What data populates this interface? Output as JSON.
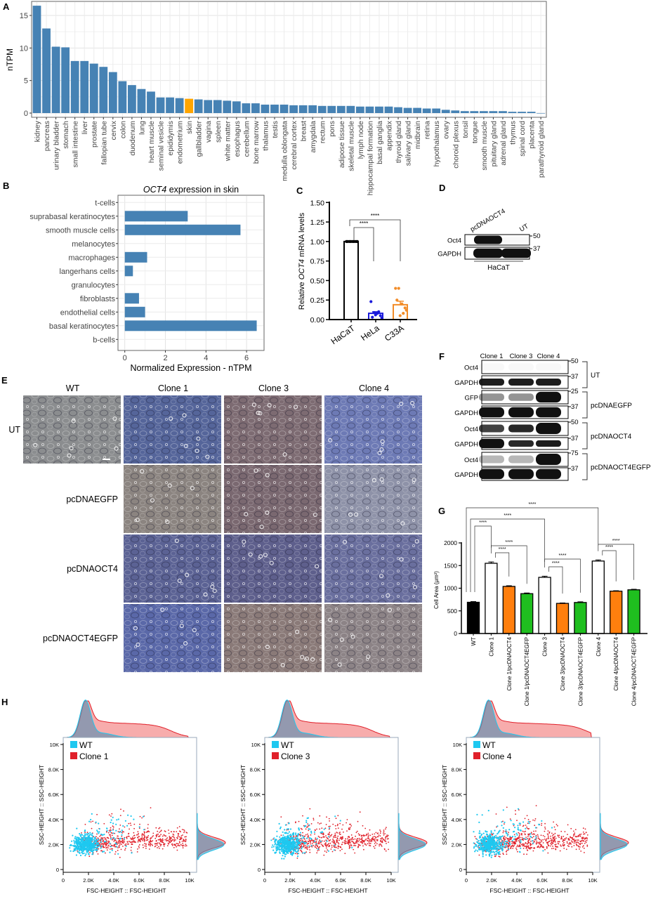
{
  "panel_labels": {
    "A": "A",
    "B": "B",
    "C": "C",
    "D": "D",
    "E": "E",
    "F": "F",
    "G": "G",
    "H": "H"
  },
  "chart_data": [
    {
      "panel": "A",
      "type": "bar",
      "ylabel": "nTPM",
      "yticks": [
        0,
        5,
        10,
        15
      ],
      "ylim": [
        -0.7,
        17
      ],
      "grid": true,
      "highlight": "skin",
      "colors": {
        "bar": "#4682b4",
        "highlight": "#ffa500"
      },
      "categories": [
        "kidney",
        "pancreas",
        "urinary bladder",
        "stomach",
        "small intestine",
        "liver",
        "prostate",
        "fallopian tube",
        "cervix",
        "colon",
        "duodenum",
        "lung",
        "heart muscle",
        "seminal vesicle",
        "epididymis",
        "endometrium",
        "skin",
        "gallbladder",
        "vagina",
        "spleen",
        "white matter",
        "esophagus",
        "cerebellum",
        "bone marrow",
        "thalamus",
        "testis",
        "medulla oblongata",
        "cerebral cortex",
        "breast",
        "amygdala",
        "rectum",
        "pons",
        "adipose tissue",
        "skeletal muscle",
        "lymph node",
        "hippocampal formation",
        "basal ganglia",
        "appendix",
        "thyroid gland",
        "salivary gland",
        "midbrain",
        "retina",
        "hypothalamus",
        "ovary",
        "choroid plexus",
        "tonsil",
        "tongue",
        "smooth muscle",
        "pituitary gland",
        "adrenal gland",
        "thymus",
        "spinal cord",
        "placenta",
        "parathyroid gland"
      ],
      "values": [
        16.5,
        13.0,
        10.2,
        10.1,
        8.0,
        8.0,
        7.6,
        7.1,
        6.3,
        4.9,
        4.3,
        3.7,
        3.3,
        2.4,
        2.4,
        2.3,
        2.2,
        2.1,
        2.0,
        2.0,
        1.9,
        1.8,
        1.5,
        1.5,
        1.3,
        1.3,
        1.3,
        1.2,
        1.2,
        1.2,
        1.1,
        1.1,
        1.1,
        1.1,
        1.0,
        1.0,
        1.0,
        1.0,
        0.9,
        0.8,
        0.8,
        0.7,
        0.7,
        0.5,
        0.4,
        0.3,
        0.3,
        0.3,
        0.3,
        0.3,
        0.2,
        0.2,
        0.2,
        0.0
      ]
    },
    {
      "panel": "B",
      "type": "bar",
      "orientation": "horizontal",
      "title_italic": "OCT4",
      "title_rest": " expression in skin",
      "xlabel": "Normalized Expression - nTPM",
      "xticks": [
        0,
        2,
        4,
        6
      ],
      "xlim": [
        -0.3,
        6.9
      ],
      "grid": true,
      "color": "#4682b4",
      "categories": [
        "t-cells",
        "suprabasal keratinocytes",
        "smooth muscle cells",
        "melanocytes",
        "macrophages",
        "langerhans cells",
        "granulocytes",
        "fibroblasts",
        "endothelial cells",
        "basal keratinocytes",
        "b-cells"
      ],
      "values": [
        0,
        3.1,
        5.7,
        0,
        1.1,
        0.4,
        0,
        0.7,
        1.0,
        6.5,
        0
      ]
    },
    {
      "panel": "C",
      "type": "bar",
      "ylabel_parts": [
        "Relative ",
        "OCT4",
        " mRNA levels"
      ],
      "yticks": [
        "0.00",
        "0.25",
        "0.50",
        "0.75",
        "1.00",
        "1.25",
        "1.50"
      ],
      "ylim": [
        0,
        1.5
      ],
      "categories": [
        "HaCaT",
        "HeLa",
        "C33A"
      ],
      "values": [
        1.0,
        0.08,
        0.19
      ],
      "sem": [
        0.0,
        0.02,
        0.045
      ],
      "points": [
        [
          1.0,
          1.0,
          1.0,
          1.0,
          1.0,
          1.0,
          1.0,
          1.0
        ],
        [
          0.23,
          0.09,
          0.08,
          0.05,
          0.03,
          0.06,
          0.1,
          0.02
        ],
        [
          0.4,
          0.4,
          0.2,
          0.15,
          0.25,
          0.05,
          0.08,
          0.12
        ]
      ],
      "colors": [
        "#000000",
        "#1a1adb",
        "#f28c28"
      ],
      "significance": [
        {
          "pair": [
            0,
            1
          ],
          "label": "****"
        },
        {
          "pair": [
            0,
            2
          ],
          "label": "****"
        }
      ]
    },
    {
      "panel": "G",
      "type": "bar",
      "ylabel": "Cell Area (μm²)",
      "yticks": [
        0,
        500,
        1000,
        1500,
        2000
      ],
      "ylim": [
        0,
        2000
      ],
      "categories": [
        "WT",
        "Clone 1",
        "Clone 1/pcDNAOCT4",
        "Clone 1/pcDNAOCT4EGFP",
        "Clone 3",
        "Clone 3/pcDNAOCT4",
        "Clone 3/pcDNAOCT4EGFP",
        "Clone 4",
        "Clone 4/pcDNAOCT4",
        "Clone 4/pcDNAOCT4EGFP"
      ],
      "values": [
        690,
        1550,
        1040,
        880,
        1240,
        665,
        685,
        1600,
        935,
        965
      ],
      "sem": [
        15,
        30,
        15,
        15,
        25,
        10,
        15,
        25,
        10,
        12
      ],
      "bar_colors": [
        "#000000",
        "#ffffff",
        "#ff7f0e",
        "#1fbf1f",
        "#ffffff",
        "#ff7f0e",
        "#1fbf1f",
        "#ffffff",
        "#ff7f0e",
        "#1fbf1f"
      ],
      "significance": [
        {
          "pair": [
            0,
            1
          ],
          "label": "****"
        },
        {
          "pair": [
            0,
            4
          ],
          "label": "****"
        },
        {
          "pair": [
            0,
            7
          ],
          "label": "****"
        },
        {
          "pair": [
            1,
            2
          ],
          "label": "****"
        },
        {
          "pair": [
            1,
            3
          ],
          "label": "****"
        },
        {
          "pair": [
            4,
            5
          ],
          "label": "****"
        },
        {
          "pair": [
            4,
            6
          ],
          "label": "****"
        },
        {
          "pair": [
            7,
            8
          ],
          "label": "****"
        },
        {
          "pair": [
            7,
            9
          ],
          "label": "****"
        }
      ]
    },
    {
      "panel": "H",
      "type": "scatter",
      "xlabel": "FSC-HEIGHT :: FSC-HEIGHT",
      "ylabel": "SSC-HEIGHT :: SSC-HEIGHT",
      "xticks": [
        "0",
        "2.0K",
        "4.0K",
        "6.0K",
        "8.0K",
        "10K"
      ],
      "yticks": [
        "0",
        "2.0K",
        "4.0K",
        "6.0K",
        "8.0K",
        "10K"
      ],
      "xlim": [
        0,
        10000
      ],
      "ylim": [
        0,
        10000
      ],
      "marginal_histograms": true,
      "legend_position": "top-left",
      "plots": [
        {
          "series": [
            {
              "name": "WT",
              "color": "#1ec8f0"
            },
            {
              "name": "Clone 1",
              "color": "#e0202a"
            }
          ]
        },
        {
          "series": [
            {
              "name": "WT",
              "color": "#1ec8f0"
            },
            {
              "name": "Clone 3",
              "color": "#e0202a"
            }
          ]
        },
        {
          "series": [
            {
              "name": "WT",
              "color": "#1ec8f0"
            },
            {
              "name": "Clone 4",
              "color": "#e0202a"
            }
          ]
        }
      ]
    }
  ],
  "blots": {
    "D": {
      "lanes": [
        "pcDNAOCT4",
        "UT"
      ],
      "rows": [
        {
          "label": "Oct4",
          "marker": "50",
          "intensity": [
            1.0,
            0.03
          ]
        },
        {
          "label": "GAPDH",
          "marker": "37",
          "intensity": [
            1.0,
            1.0
          ]
        }
      ],
      "cell_line": "HaCaT"
    },
    "F": {
      "lanes": [
        "Clone 1",
        "Clone 3",
        "Clone 4"
      ],
      "rows": [
        {
          "label": "Oct4",
          "marker": "50",
          "intensity": [
            0.03,
            0.03,
            0.03
          ]
        },
        {
          "label": "GAPDH",
          "marker": "37",
          "intensity": [
            0.95,
            0.95,
            0.95
          ]
        },
        {
          "label": "GFP",
          "marker": "25",
          "intensity": [
            0.45,
            0.45,
            1.0
          ]
        },
        {
          "label": "GAPDH",
          "marker": "37",
          "intensity": [
            1.0,
            1.0,
            1.0
          ]
        },
        {
          "label": "Oct4",
          "marker": "50",
          "intensity": [
            0.8,
            0.9,
            1.0
          ]
        },
        {
          "label": "GAPDH",
          "marker": "37",
          "intensity": [
            1.0,
            0.9,
            0.95
          ]
        },
        {
          "label": "Oct4",
          "marker": "75",
          "intensity": [
            0.3,
            0.3,
            1.0
          ]
        },
        {
          "label": "GAPDH",
          "marker": "37",
          "intensity": [
            1.0,
            1.0,
            1.0
          ]
        }
      ],
      "groups": [
        "UT",
        "pcDNAEGFP",
        "pcDNAOCT4",
        "pcDNAOCT4EGFP"
      ]
    }
  },
  "micrographs": {
    "columns": [
      "WT",
      "Clone 1",
      "Clone 3",
      "Clone 4"
    ],
    "rows": [
      "UT",
      "pcDNAEGFP",
      "pcDNAOCT4",
      "pcDNAOCT4EGFP"
    ],
    "tints": [
      [
        "#8b8d8f",
        "#55659a",
        "#7d6b72",
        "#6d7ab5"
      ],
      [
        null,
        "#8b8480",
        "#7a6870",
        "#8e92a8"
      ],
      [
        null,
        "#5b6294",
        "#5e5f8c",
        "#6a6f9e"
      ],
      [
        null,
        "#5a68a8",
        "#8a7a78",
        "#8c8386"
      ]
    ]
  }
}
